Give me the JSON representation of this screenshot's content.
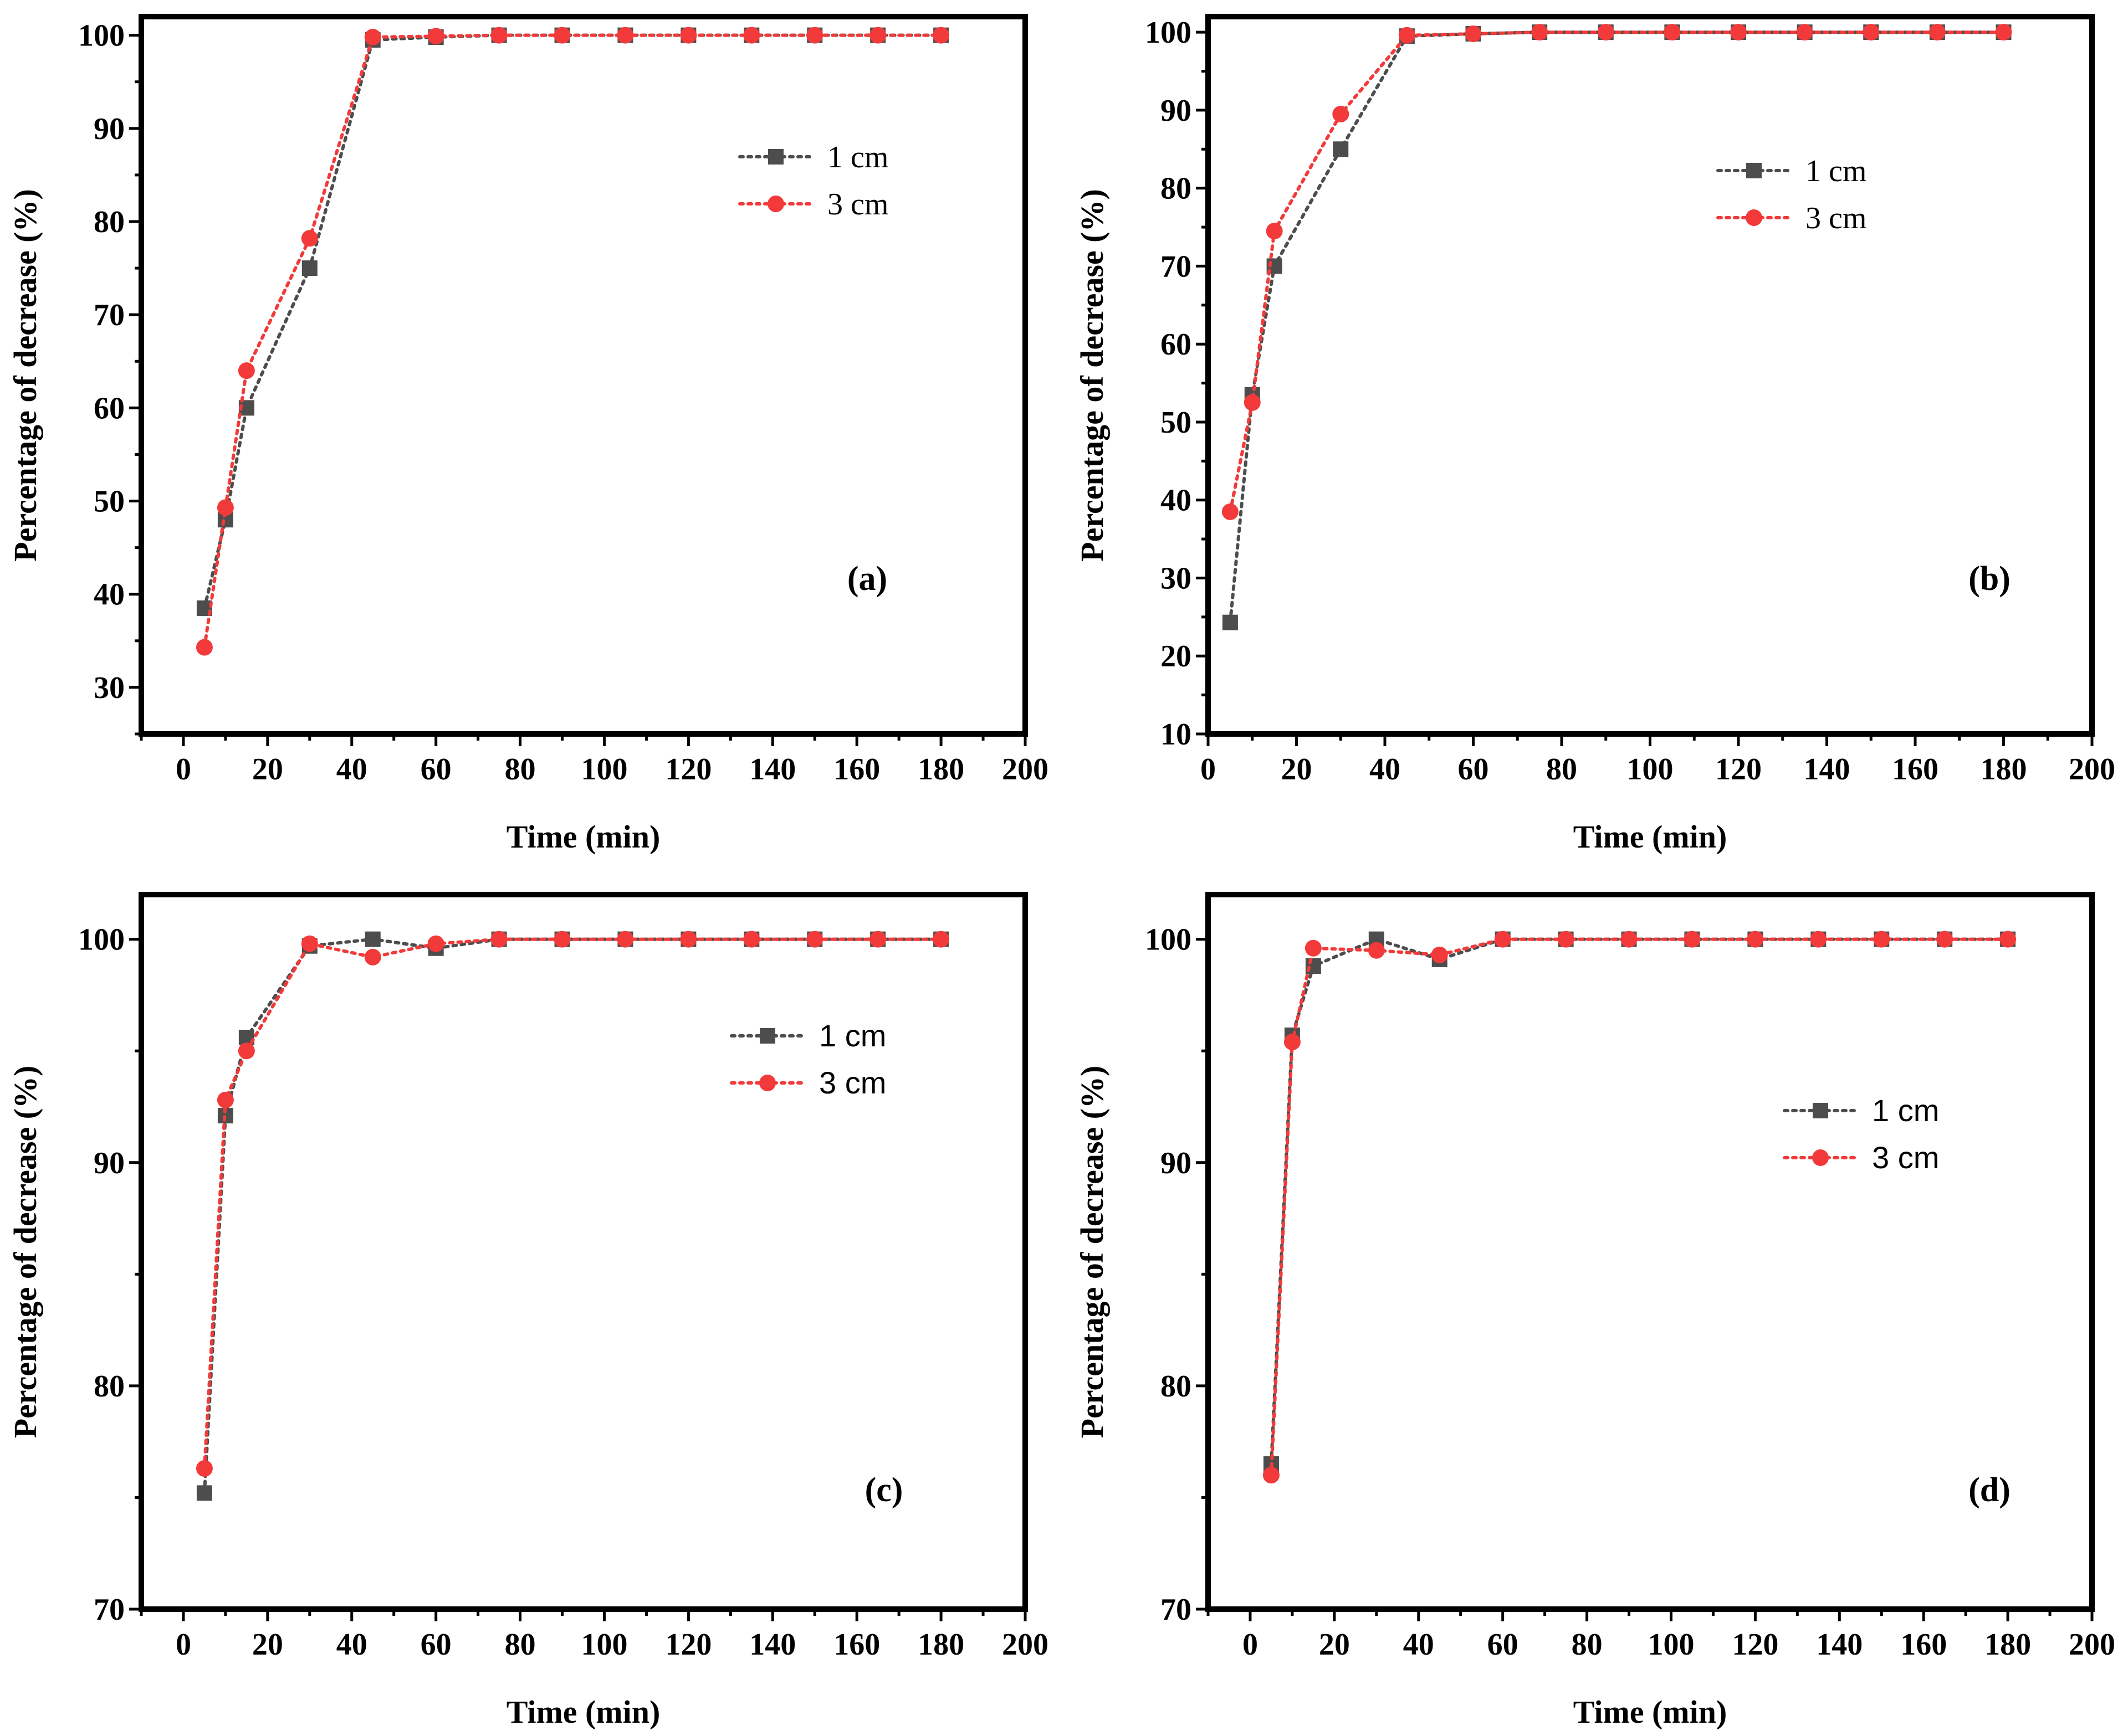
{
  "chart_data": [
    {
      "panel": "(a)",
      "type": "line",
      "xlabel": "Time (min)",
      "ylabel": "Percentage of decrease (%)",
      "xlim": [
        -10,
        200
      ],
      "ylim": [
        25,
        102
      ],
      "xticks": [
        0,
        20,
        40,
        60,
        80,
        100,
        120,
        140,
        160,
        180,
        200
      ],
      "yticks": [
        30,
        40,
        50,
        60,
        70,
        80,
        90,
        100
      ],
      "legend_position": "upper-right",
      "legend_font": "serif",
      "x": [
        5,
        10,
        15,
        30,
        45,
        60,
        75,
        90,
        105,
        120,
        135,
        150,
        165,
        180
      ],
      "series": [
        {
          "name": "1 cm",
          "color": "#4d4d4d",
          "marker": "square",
          "values": [
            38.5,
            48,
            60,
            75,
            99.5,
            99.8,
            100,
            100,
            100,
            100,
            100,
            100,
            100,
            100
          ]
        },
        {
          "name": "3 cm",
          "color": "#f23a3a",
          "marker": "circle",
          "values": [
            34.3,
            49.3,
            64,
            78.2,
            99.8,
            99.9,
            100,
            100,
            100,
            100,
            100,
            100,
            100,
            100
          ]
        }
      ]
    },
    {
      "panel": "(b)",
      "type": "line",
      "xlabel": "Time (min)",
      "ylabel": "Percentage of decrease (%)",
      "xlim": [
        0,
        200
      ],
      "ylim": [
        10,
        102
      ],
      "xticks": [
        0,
        20,
        40,
        60,
        80,
        100,
        120,
        140,
        160,
        180,
        200
      ],
      "yticks": [
        10,
        20,
        30,
        40,
        50,
        60,
        70,
        80,
        90,
        100
      ],
      "legend_position": "upper-right",
      "legend_font": "serif",
      "x": [
        5,
        10,
        15,
        30,
        45,
        60,
        75,
        90,
        105,
        120,
        135,
        150,
        165,
        180
      ],
      "series": [
        {
          "name": "1 cm",
          "color": "#4d4d4d",
          "marker": "square",
          "values": [
            24.3,
            53.5,
            70,
            85,
            99.5,
            99.8,
            100,
            100,
            100,
            100,
            100,
            100,
            100,
            100
          ]
        },
        {
          "name": "3 cm",
          "color": "#f23a3a",
          "marker": "circle",
          "values": [
            38.5,
            52.5,
            74.5,
            89.5,
            99.6,
            99.8,
            100,
            100,
            100,
            100,
            100,
            100,
            100,
            100
          ]
        }
      ]
    },
    {
      "panel": "(c)",
      "type": "line",
      "xlabel": "Time (min)",
      "ylabel": "Percentage of decrease (%)",
      "xlim": [
        -10,
        200
      ],
      "ylim": [
        70,
        102
      ],
      "xticks": [
        0,
        20,
        40,
        60,
        80,
        100,
        120,
        140,
        160,
        180,
        200
      ],
      "yticks": [
        70,
        80,
        90,
        100
      ],
      "legend_position": "upper-right",
      "legend_font": "sans",
      "x": [
        5,
        10,
        15,
        30,
        45,
        60,
        75,
        90,
        105,
        120,
        135,
        150,
        165,
        180
      ],
      "series": [
        {
          "name": "1 cm",
          "color": "#4d4d4d",
          "marker": "square",
          "values": [
            75.2,
            92.1,
            95.6,
            99.7,
            100,
            99.6,
            100,
            100,
            100,
            100,
            100,
            100,
            100,
            100
          ]
        },
        {
          "name": "3 cm",
          "color": "#f23a3a",
          "marker": "circle",
          "values": [
            76.3,
            92.8,
            95,
            99.8,
            99.2,
            99.8,
            100,
            100,
            100,
            100,
            100,
            100,
            100,
            100
          ]
        }
      ]
    },
    {
      "panel": "(d)",
      "type": "line",
      "xlabel": "Time (min)",
      "ylabel": "Percentage of decrease (%)",
      "xlim": [
        -10,
        200
      ],
      "ylim": [
        70,
        102
      ],
      "xticks": [
        0,
        20,
        40,
        60,
        80,
        100,
        120,
        140,
        160,
        180,
        200
      ],
      "yticks": [
        70,
        80,
        90,
        100
      ],
      "legend_position": "middle-right",
      "legend_font": "sans",
      "x": [
        5,
        10,
        15,
        30,
        45,
        60,
        75,
        90,
        105,
        120,
        135,
        150,
        165,
        180
      ],
      "series": [
        {
          "name": "1 cm",
          "color": "#4d4d4d",
          "marker": "square",
          "values": [
            76.5,
            95.7,
            98.8,
            100,
            99.1,
            100,
            100,
            100,
            100,
            100,
            100,
            100,
            100,
            100
          ]
        },
        {
          "name": "3 cm",
          "color": "#f23a3a",
          "marker": "circle",
          "values": [
            76,
            95.4,
            99.6,
            99.5,
            99.3,
            100,
            100,
            100,
            100,
            100,
            100,
            100,
            100,
            100
          ]
        }
      ]
    }
  ]
}
